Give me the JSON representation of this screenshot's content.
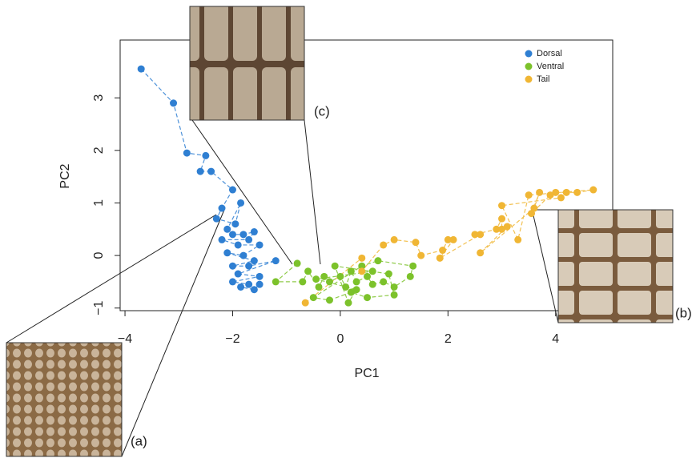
{
  "chart_data": {
    "type": "scatter",
    "x_label": "PC1",
    "y_label": "PC2",
    "xlim": [
      -4.09,
      5.06
    ],
    "ylim": [
      -1.05,
      4.1
    ],
    "xticks": [
      {
        "value": -4,
        "label": "−4"
      },
      {
        "value": -2,
        "label": "−2"
      },
      0,
      2,
      4
    ],
    "yticks": [
      {
        "value": -1,
        "label": "−1"
      },
      0,
      1,
      2,
      3
    ],
    "legend": "top-right",
    "annotations": [
      "(a)",
      "(b)",
      "(c)"
    ],
    "series": [
      {
        "name": "Dorsal",
        "color": "#2f7fd2",
        "x": [
          -3.7,
          -3.1,
          -2.85,
          -2.5,
          -2.6,
          -2.4,
          -2.0,
          -2.2,
          -2.3,
          -1.95,
          -1.85,
          -2.1,
          -2.0,
          -1.8,
          -1.6,
          -1.7,
          -2.2,
          -1.9,
          -1.5,
          -1.8,
          -2.1,
          -1.6,
          -2.0,
          -1.7,
          -1.2,
          -1.9,
          -1.5,
          -2.0,
          -1.7,
          -1.85,
          -1.6,
          -1.5
        ],
        "y": [
          3.55,
          2.9,
          1.95,
          1.9,
          1.6,
          1.6,
          1.25,
          0.9,
          0.7,
          0.6,
          1.0,
          0.5,
          0.4,
          0.4,
          0.45,
          0.3,
          0.3,
          0.2,
          0.2,
          0.0,
          0.05,
          -0.1,
          -0.2,
          -0.2,
          -0.1,
          -0.35,
          -0.4,
          -0.5,
          -0.55,
          -0.6,
          -0.65,
          -0.55
        ]
      },
      {
        "name": "Ventral",
        "color": "#7cc22b",
        "x": [
          -0.8,
          -1.2,
          -0.7,
          -0.6,
          -0.4,
          -0.3,
          -0.2,
          0,
          0.1,
          0.2,
          0.3,
          0.5,
          0.6,
          0.8,
          1.0,
          1.3,
          1.35,
          0.7,
          0.4,
          -0.5,
          -0.2,
          0.2,
          0.5,
          1.0,
          0.9,
          -0.1,
          0.15,
          0.3,
          -0.45,
          0.6
        ],
        "y": [
          -0.15,
          -0.5,
          -0.5,
          -0.3,
          -0.6,
          -0.4,
          -0.5,
          -0.4,
          -0.6,
          -0.3,
          -0.5,
          -0.4,
          -0.55,
          -0.5,
          -0.6,
          -0.4,
          -0.2,
          -0.1,
          -0.2,
          -0.8,
          -0.85,
          -0.7,
          -0.8,
          -0.75,
          -0.35,
          -0.2,
          -0.9,
          -0.65,
          -0.45,
          -0.3
        ]
      },
      {
        "name": "Tail",
        "color": "#f0b634",
        "x": [
          -0.65,
          0.4,
          0.4,
          0.8,
          1.0,
          1.4,
          1.5,
          1.9,
          2.0,
          2.1,
          1.85,
          2.6,
          2.5,
          2.9,
          3.0,
          3.0,
          3.1,
          2.6,
          3.6,
          3.7,
          3.55,
          3.9,
          4.0,
          4.2,
          4.4,
          4.7,
          3.5,
          3.3,
          3.0,
          4.1
        ],
        "y": [
          -0.9,
          -0.05,
          -0.3,
          0.2,
          0.3,
          0.25,
          0.0,
          0.1,
          0.3,
          0.3,
          -0.05,
          0.4,
          0.4,
          0.5,
          0.7,
          0.5,
          0.55,
          0.05,
          0.9,
          1.2,
          0.8,
          1.15,
          1.2,
          1.2,
          1.2,
          1.25,
          1.15,
          0.3,
          0.95,
          1.1
        ]
      }
    ]
  }
}
